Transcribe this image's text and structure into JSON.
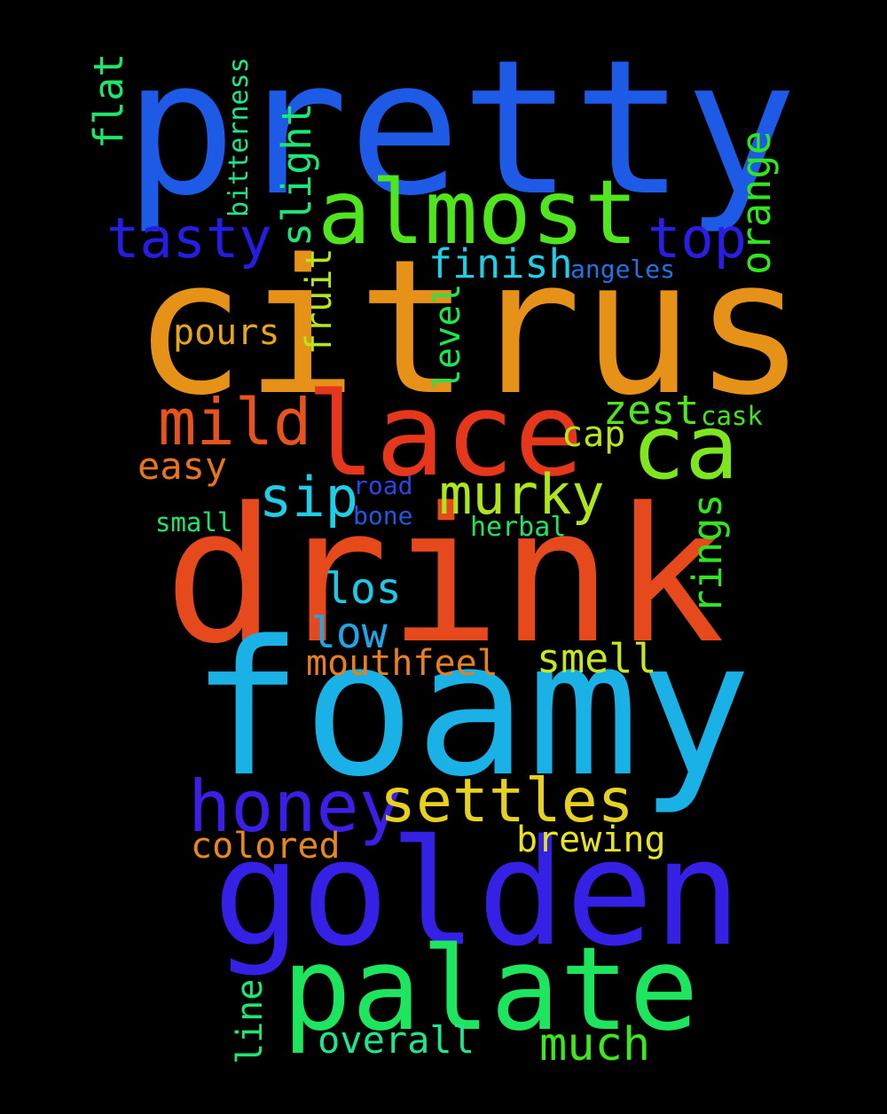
{
  "words": [
    {
      "id": "pretty",
      "text": "pretty",
      "color": "#1d5be6"
    },
    {
      "id": "citrus",
      "text": "citrus",
      "color": "#e69219"
    },
    {
      "id": "drink",
      "text": "drink",
      "color": "#e5491c"
    },
    {
      "id": "foamy",
      "text": "foamy",
      "color": "#19b1e6"
    },
    {
      "id": "golden",
      "text": "golden",
      "color": "#3521e6"
    },
    {
      "id": "palate",
      "text": "palate",
      "color": "#1de65e"
    },
    {
      "id": "almost",
      "text": "almost",
      "color": "#4fe61d"
    },
    {
      "id": "lace",
      "text": "lace",
      "color": "#e6361c"
    },
    {
      "id": "ca",
      "text": "ca",
      "color": "#7ee61c"
    },
    {
      "id": "honey",
      "text": "honey",
      "color": "#3b1fe6"
    },
    {
      "id": "settles",
      "text": "settles",
      "color": "#e6d21e"
    },
    {
      "id": "mild",
      "text": "mild",
      "color": "#e6531c"
    },
    {
      "id": "tasty",
      "text": "tasty",
      "color": "#241de6"
    },
    {
      "id": "top",
      "text": "top",
      "color": "#2a1de6"
    },
    {
      "id": "murky",
      "text": "murky",
      "color": "#aee61c"
    },
    {
      "id": "sip",
      "text": "sip",
      "color": "#1ecee6"
    },
    {
      "id": "finish",
      "text": "finish",
      "color": "#1ecfe6"
    },
    {
      "id": "smell",
      "text": "smell",
      "color": "#c8e61d"
    },
    {
      "id": "much",
      "text": "much",
      "color": "#3fe61d"
    },
    {
      "id": "los",
      "text": "los",
      "color": "#1ec9e6"
    },
    {
      "id": "low",
      "text": "low",
      "color": "#1ea7e6"
    },
    {
      "id": "pours",
      "text": "pours",
      "color": "#e6a51d"
    },
    {
      "id": "zest",
      "text": "zest",
      "color": "#4fe61d"
    },
    {
      "id": "mouthfeel",
      "text": "mouthfeel",
      "color": "#e6801d"
    },
    {
      "id": "easy",
      "text": "easy",
      "color": "#e6751d"
    },
    {
      "id": "overall",
      "text": "overall",
      "color": "#1de68e"
    },
    {
      "id": "colored",
      "text": "colored",
      "color": "#e6881d"
    },
    {
      "id": "brewing",
      "text": "brewing",
      "color": "#e6e51e"
    },
    {
      "id": "cap",
      "text": "cap",
      "color": "#b8e61d"
    },
    {
      "id": "angeles",
      "text": "angeles",
      "color": "#1d74e6"
    },
    {
      "id": "cask",
      "text": "cask",
      "color": "#41e61d"
    },
    {
      "id": "road",
      "text": "road",
      "color": "#2b45e6"
    },
    {
      "id": "bone",
      "text": "bone",
      "color": "#1d58e6"
    },
    {
      "id": "small",
      "text": "small",
      "color": "#1de670"
    },
    {
      "id": "herbal",
      "text": "herbal",
      "color": "#1de661"
    },
    {
      "id": "flat",
      "text": "flat",
      "color": "#1de66a"
    },
    {
      "id": "bitterness",
      "text": "bitterness",
      "color": "#1de688"
    },
    {
      "id": "slight",
      "text": "slight",
      "color": "#1de676"
    },
    {
      "id": "orange",
      "text": "orange",
      "color": "#30e61d"
    },
    {
      "id": "fruit",
      "text": "fruit",
      "color": "#b5e61d"
    },
    {
      "id": "level",
      "text": "level",
      "color": "#1de64d"
    },
    {
      "id": "rings",
      "text": "rings",
      "color": "#2fe61d"
    },
    {
      "id": "line",
      "text": "line",
      "color": "#1de671"
    }
  ]
}
